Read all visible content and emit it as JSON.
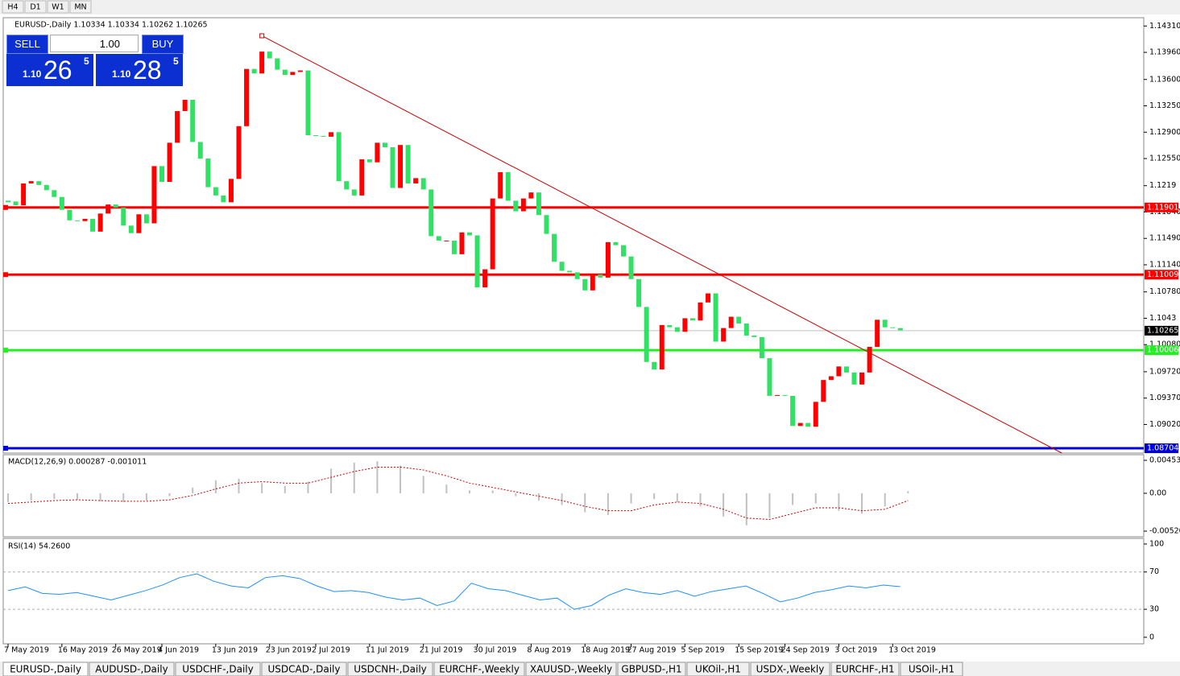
{
  "toolbar": {
    "timeframes": [
      "H4",
      "D1",
      "W1",
      "MN"
    ]
  },
  "trade_panel": {
    "sell": "SELL",
    "buy": "BUY",
    "lots": "1.00",
    "sell_price": {
      "big": "1.10",
      "main": "26",
      "small": "5"
    },
    "buy_price": {
      "big": "1.10",
      "main": "28",
      "small": "5"
    }
  },
  "chart_data": [
    {
      "type": "candlestick",
      "title": "EURUSD-,Daily  1.10334 1.10334 1.10262 1.10265",
      "up_color": "#ff0000",
      "down_color": "#33e066",
      "values": [
        1.1198,
        1.1193,
        1.1222,
        1.1225,
        1.122,
        1.1213,
        1.1204,
        1.1187,
        1.1173,
        1.1172,
        1.1175,
        1.1158,
        1.1182,
        1.1194,
        1.119,
        1.1166,
        1.1156,
        1.1181,
        1.1169,
        1.1245,
        1.1224,
        1.1276,
        1.1318,
        1.1333,
        1.1277,
        1.1255,
        1.1217,
        1.1206,
        1.1197,
        1.1228,
        1.1298,
        1.1374,
        1.1368,
        1.1397,
        1.1388,
        1.1373,
        1.1366,
        1.137,
        1.1372,
        1.1286,
        1.1285,
        1.1284,
        1.129,
        1.1225,
        1.1214,
        1.1206,
        1.1254,
        1.125,
        1.1276,
        1.127,
        1.1216,
        1.1273,
        1.1222,
        1.1229,
        1.1214,
        1.1152,
        1.1146,
        1.1146,
        1.1128,
        1.1157,
        1.1153,
        1.1084,
        1.1108,
        1.1202,
        1.1237,
        1.1199,
        1.1185,
        1.1202,
        1.121,
        1.118,
        1.1155,
        1.1118,
        1.1106,
        1.1104,
        1.1095,
        1.108,
        1.1101,
        1.1097,
        1.1144,
        1.114,
        1.1125,
        1.1095,
        1.1058,
        1.0985,
        1.0975,
        1.1034,
        1.1031,
        1.1025,
        1.1043,
        1.104,
        1.1064,
        1.1076,
        1.1012,
        1.103,
        1.1045,
        1.1036,
        1.102,
        1.1018,
        1.099,
        1.094,
        1.0941,
        1.094,
        1.09,
        1.0904,
        1.0899,
        1.0932,
        1.0961,
        1.0966,
        1.0979,
        1.0971,
        1.0955,
        1.0971,
        1.1005,
        1.1041,
        1.1031,
        1.103,
        1.1027
      ],
      "ylim": [
        1.0864,
        1.1442
      ],
      "yticks": [
        {
          "value": 1.1431,
          "label": "1.14310"
        },
        {
          "value": 1.1396,
          "label": "1.13960"
        },
        {
          "value": 1.136,
          "label": "1.13600"
        },
        {
          "value": 1.1325,
          "label": "1.13250"
        },
        {
          "value": 1.129,
          "label": "1.12900"
        },
        {
          "value": 1.1255,
          "label": "1.12550"
        },
        1.1219,
        {
          "value": 1.1184,
          "label": "1.11840"
        },
        {
          "value": 1.1149,
          "label": "1.11490"
        },
        {
          "value": 1.1114,
          "label": "1.11140"
        },
        {
          "value": 1.1078,
          "label": "1.10780"
        },
        1.1043,
        {
          "value": 1.1008,
          "label": "1.10080"
        },
        {
          "value": 1.0972,
          "label": "1.09720"
        },
        {
          "value": 1.0937,
          "label": "1.09370"
        },
        {
          "value": 1.0902,
          "label": "1.09020"
        }
      ],
      "xticks": [
        {
          "value": 0,
          "label": "7 May 2019"
        },
        {
          "value": 7,
          "label": "16 May 2019"
        },
        {
          "value": 14,
          "label": "26 May 2019"
        },
        {
          "value": 20,
          "label": "4 Jun 2019"
        },
        {
          "value": 27,
          "label": "13 Jun 2019"
        },
        {
          "value": 34,
          "label": "23 Jun 2019"
        },
        {
          "value": 40,
          "label": "2 Jul 2019"
        },
        {
          "value": 47,
          "label": "11 Jul 2019"
        },
        {
          "value": 54,
          "label": "21 Jul 2019"
        },
        {
          "value": 61,
          "label": "30 Jul 2019"
        },
        {
          "value": 68,
          "label": "8 Aug 2019"
        },
        {
          "value": 75,
          "label": "18 Aug 2019"
        },
        {
          "value": 81,
          "label": "27 Aug 2019"
        },
        {
          "value": 88,
          "label": "5 Sep 2019"
        },
        {
          "value": 95,
          "label": "15 Sep 2019"
        },
        {
          "value": 101,
          "label": "24 Sep 2019"
        },
        {
          "value": 108,
          "label": "3 Oct 2019"
        },
        {
          "value": 115,
          "label": "13 Oct 2019"
        }
      ],
      "levels": [
        {
          "value": 1.11901,
          "color": "#ff0000"
        },
        {
          "value": 1.11009,
          "color": "#ff0000"
        },
        {
          "value": 1.10006,
          "color": "#22ee22"
        },
        {
          "value": 1.08704,
          "color": "#0000dd"
        }
      ],
      "current_price": 1.10265,
      "trendline": {
        "x": [
          33,
          137
        ],
        "values": [
          1.1418,
          1.0864
        ],
        "color": "#cc0000"
      }
    },
    {
      "type": "macd",
      "title": "MACD(12,26,9) 0.000287 -0.001011",
      "histogram": [
        -0.0012,
        -0.001,
        -0.0008,
        -0.0009,
        -0.0011,
        -0.0012,
        -0.001,
        -0.0004,
        0.0008,
        0.0018,
        0.002,
        0.0014,
        0.001,
        0.0016,
        0.0034,
        0.0042,
        0.0044,
        0.0038,
        0.0024,
        0.0012,
        0.0004,
        0.0004,
        -0.0004,
        -0.001,
        -0.0016,
        -0.0026,
        -0.003,
        -0.0014,
        -0.0008,
        -0.0012,
        -0.0018,
        -0.0032,
        -0.0044,
        -0.0034,
        -0.0016,
        -0.0014,
        -0.0024,
        -0.0028,
        -0.0018,
        0.0003
      ],
      "signal": [
        -0.0014,
        -0.0012,
        -0.001,
        -0.0009,
        -0.001,
        -0.0011,
        -0.0011,
        -0.0009,
        -0.0003,
        0.0006,
        0.0014,
        0.0016,
        0.0014,
        0.0014,
        0.0022,
        0.003,
        0.0036,
        0.0036,
        0.0032,
        0.0024,
        0.0014,
        0.0008,
        0.0002,
        -0.0004,
        -0.001,
        -0.0018,
        -0.0024,
        -0.0024,
        -0.0016,
        -0.0012,
        -0.0014,
        -0.0022,
        -0.0034,
        -0.0036,
        -0.0028,
        -0.002,
        -0.002,
        -0.0024,
        -0.0022,
        -0.001
      ],
      "ylim": [
        -0.00598,
        0.00531
      ],
      "yticks": [
        0.004536,
        {
          "value": 0,
          "label": "0.00"
        },
        -0.005205
      ],
      "color": "#c0c0c0",
      "signal_color": "#cc0000"
    },
    {
      "type": "rsi",
      "title": "RSI(14) 54.2600",
      "values": [
        50,
        54,
        47,
        46,
        48,
        44,
        40,
        45,
        50,
        56,
        64,
        68,
        60,
        55,
        53,
        64,
        66,
        63,
        55,
        49,
        50,
        48,
        43,
        40,
        42,
        34,
        39,
        58,
        52,
        50,
        45,
        40,
        42,
        30,
        34,
        45,
        52,
        48,
        46,
        50,
        44,
        49,
        52,
        55,
        47,
        38,
        42,
        48,
        51,
        55,
        53,
        56,
        54.26
      ],
      "ylim": [
        -7,
        106
      ],
      "yticks": [
        100,
        70,
        30,
        0
      ],
      "levels": [
        70,
        30
      ],
      "color": "#1e90ff"
    }
  ],
  "tabs": [
    "EURUSD-,Daily",
    "AUDUSD-,Daily",
    "USDCHF-,Daily",
    "USDCAD-,Daily",
    "USDCNH-,Daily",
    "EURCHF-,Weekly",
    "XAUUSD-,Weekly",
    "GBPUSD-,H1",
    "UKOil-,H1",
    "USDX-,Weekly",
    "EURCHF-,H1",
    "USOil-,H1"
  ]
}
